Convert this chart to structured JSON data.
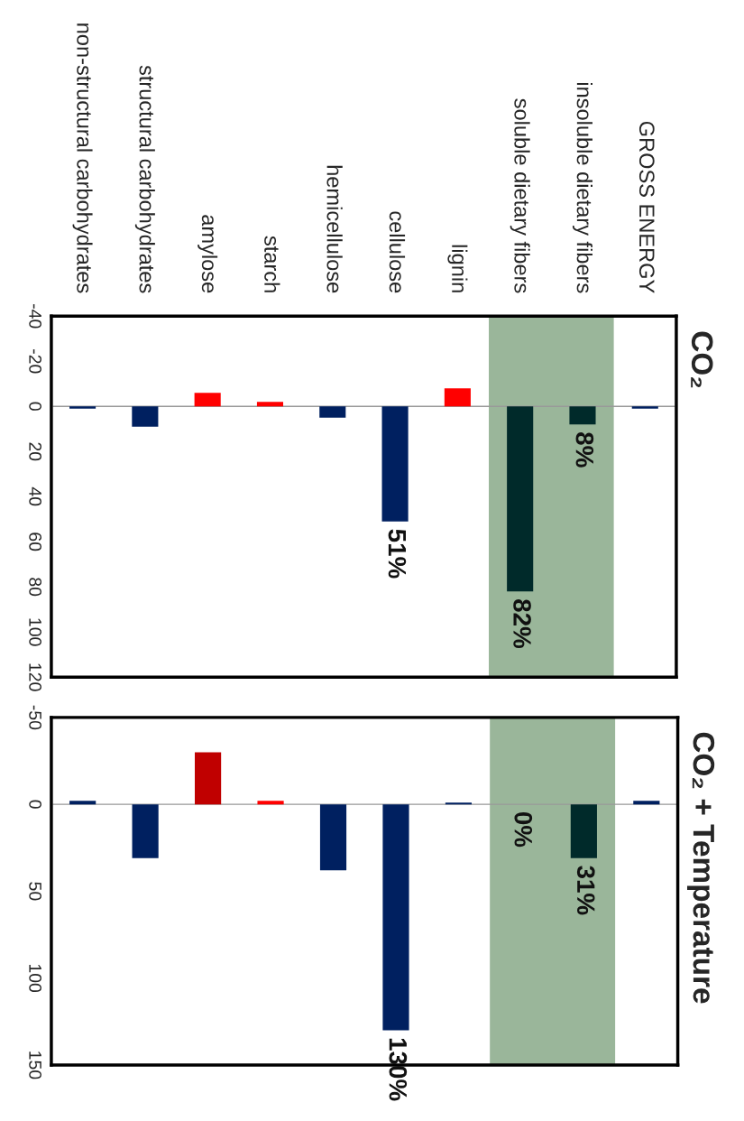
{
  "chart_data": [
    {
      "type": "bar",
      "title": "CO₂",
      "categories": [
        "non-structural carbohydrates",
        "structural carbohydrates",
        "amylose",
        "starch",
        "hemicellulose",
        "cellulose",
        "lignin",
        "soluble dietary fibers",
        "insoluble dietary fibers",
        "GROSS ENERGY"
      ],
      "values": [
        1,
        9,
        -6,
        -2,
        5,
        51,
        -8,
        82,
        8,
        1
      ],
      "colors": [
        "#002060",
        "#002060",
        "#ff0000",
        "#ff0000",
        "#002060",
        "#002060",
        "#ff0000",
        "#002a2a",
        "#002a2a",
        "#002060"
      ],
      "value_labels": [
        null,
        null,
        null,
        null,
        null,
        "51%",
        null,
        "82%",
        "8%",
        null
      ],
      "ylim": [
        120,
        -40
      ],
      "yticks": [
        -40,
        -20,
        0,
        20,
        40,
        60,
        80,
        100,
        120
      ],
      "bands": [
        {
          "axis": "x",
          "from": "soluble dietary fibers",
          "to": "insoluble dietary fibers",
          "color": "#8fae8f"
        }
      ],
      "legend": false
    },
    {
      "type": "bar",
      "title": "CO₂ + Temperature",
      "categories": [
        "non-structural carbohydrates",
        "structural carbohydrates",
        "amylose",
        "starch",
        "hemicellulose",
        "cellulose",
        "lignin",
        "soluble dietary fibers",
        "insoluble dietary fibers",
        "GROSS ENERGY"
      ],
      "values": [
        -2,
        31,
        -30,
        -2,
        38,
        130,
        -1,
        0,
        31,
        -2
      ],
      "colors": [
        "#002060",
        "#002060",
        "#c00000",
        "#ff0000",
        "#002060",
        "#002060",
        "#002060",
        "#002a2a",
        "#002a2a",
        "#002060"
      ],
      "value_labels": [
        null,
        null,
        null,
        null,
        null,
        "130%",
        null,
        "0%",
        "31%",
        null
      ],
      "ylim": [
        150,
        -50
      ],
      "yticks": [
        -50,
        0,
        50,
        100,
        150
      ],
      "bands": [
        {
          "axis": "x",
          "from": "soluble dietary fibers",
          "to": "insoluble dietary fibers",
          "color": "#8fae8f"
        }
      ],
      "tick_labels": "y",
      "legend": false
    }
  ]
}
